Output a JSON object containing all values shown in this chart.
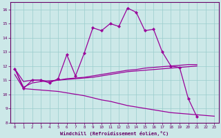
{
  "xlabel": "Windchill (Refroidissement éolien,°C)",
  "background_color": "#cce8e8",
  "grid_color": "#99cccc",
  "line_color": "#990099",
  "xlim": [
    -0.5,
    23.5
  ],
  "ylim": [
    8,
    16.5
  ],
  "x": [
    0,
    1,
    2,
    3,
    4,
    5,
    6,
    7,
    8,
    9,
    10,
    11,
    12,
    13,
    14,
    15,
    16,
    17,
    18,
    19,
    20,
    21,
    22,
    23
  ],
  "line1_jagged": [
    11.8,
    10.4,
    11.0,
    11.0,
    10.8,
    11.1,
    12.8,
    11.3,
    12.9,
    14.7,
    14.5,
    15.0,
    14.8,
    16.1,
    15.8,
    14.5,
    14.6,
    13.0,
    12.0,
    11.9,
    9.7,
    8.4,
    null,
    null
  ],
  "line1_x": [
    0,
    1,
    2,
    3,
    4,
    5,
    6,
    7,
    8,
    9,
    10,
    11,
    12,
    13,
    14,
    15,
    16,
    17,
    18,
    19,
    20,
    21
  ],
  "line1_y": [
    11.8,
    10.4,
    11.0,
    11.0,
    10.8,
    11.1,
    12.8,
    11.3,
    12.9,
    14.7,
    14.5,
    15.0,
    14.8,
    16.1,
    15.8,
    14.5,
    14.6,
    13.0,
    12.0,
    11.9,
    9.7,
    8.4
  ],
  "line2_x": [
    0,
    1,
    2,
    3,
    4,
    5,
    6,
    7,
    8,
    9,
    10,
    11,
    12,
    13,
    14,
    15,
    16,
    17,
    18,
    19,
    20,
    21
  ],
  "line2_y": [
    11.8,
    10.9,
    11.0,
    11.0,
    10.9,
    11.0,
    11.1,
    11.15,
    11.2,
    11.3,
    11.4,
    11.5,
    11.6,
    11.7,
    11.75,
    11.85,
    11.9,
    11.95,
    12.0,
    12.05,
    12.1,
    12.1
  ],
  "line3_x": [
    0,
    1,
    2,
    3,
    4,
    5,
    6,
    7,
    8,
    9,
    10,
    11,
    12,
    13,
    14,
    15,
    16,
    17,
    18,
    19,
    20,
    21
  ],
  "line3_y": [
    11.8,
    10.5,
    10.8,
    10.9,
    10.95,
    11.0,
    11.05,
    11.1,
    11.15,
    11.2,
    11.3,
    11.4,
    11.5,
    11.6,
    11.65,
    11.7,
    11.75,
    11.8,
    11.85,
    11.9,
    11.95,
    12.0
  ],
  "line4_x": [
    0,
    1,
    2,
    3,
    4,
    5,
    6,
    7,
    8,
    9,
    10,
    11,
    12,
    13,
    14,
    15,
    16,
    17,
    18,
    19,
    20,
    21,
    22,
    23
  ],
  "line4_y": [
    11.4,
    10.4,
    10.35,
    10.3,
    10.25,
    10.2,
    10.1,
    10.0,
    9.9,
    9.75,
    9.6,
    9.5,
    9.35,
    9.2,
    9.1,
    9.0,
    8.9,
    8.8,
    8.7,
    8.65,
    8.6,
    8.55,
    8.5,
    8.45
  ],
  "yticks": [
    8,
    9,
    10,
    11,
    12,
    13,
    14,
    15,
    16
  ],
  "xticks": [
    0,
    1,
    2,
    3,
    4,
    5,
    6,
    7,
    8,
    9,
    10,
    11,
    12,
    13,
    14,
    15,
    16,
    17,
    18,
    19,
    20,
    21,
    22,
    23
  ],
  "tick_color": "#660066",
  "axis_color": "#660066"
}
